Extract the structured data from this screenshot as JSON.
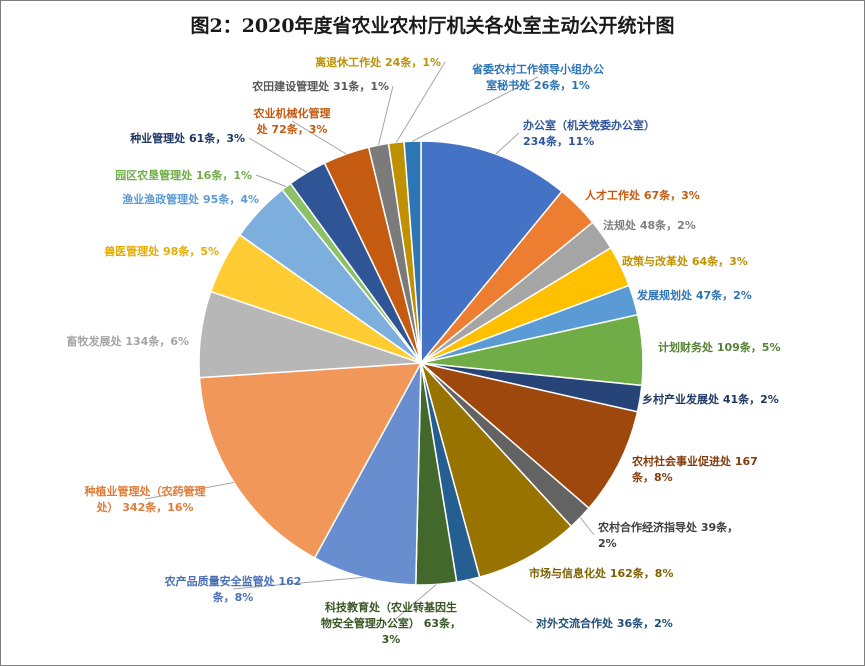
{
  "chart_data": {
    "type": "pie",
    "title": "图2：2020年度省农业农村厅机关各处室主动公开统计图",
    "unit": "条",
    "slices": [
      {
        "name": "办公室（机关党委办公室）",
        "value": 234,
        "percent": "11%",
        "color": "#4472c4"
      },
      {
        "name": "人才工作处",
        "value": 67,
        "percent": "3%",
        "color": "#ed7d31"
      },
      {
        "name": "法规处",
        "value": 48,
        "percent": "2%",
        "color": "#a5a5a5"
      },
      {
        "name": "政策与改革处",
        "value": 64,
        "percent": "3%",
        "color": "#ffc000"
      },
      {
        "name": "发展规划处",
        "value": 47,
        "percent": "2%",
        "color": "#5b9bd5"
      },
      {
        "name": "计划财务处",
        "value": 109,
        "percent": "5%",
        "color": "#70ad47"
      },
      {
        "name": "乡村产业发展处",
        "value": 41,
        "percent": "2%",
        "color": "#264478"
      },
      {
        "name": "农村社会事业促进处",
        "value": 167,
        "percent": "8%",
        "color": "#9e480e"
      },
      {
        "name": "农村合作经济指导处",
        "value": 39,
        "percent": "2%",
        "color": "#636363"
      },
      {
        "name": "市场与信息化处",
        "value": 162,
        "percent": "8%",
        "color": "#997300"
      },
      {
        "name": "对外交流合作处",
        "value": 36,
        "percent": "2%",
        "color": "#255e91"
      },
      {
        "name": "科技教育处（农业转基因生物安全管理办公室）",
        "value": 63,
        "percent": "3%",
        "color": "#43682b"
      },
      {
        "name": "农产品质量安全监管处",
        "value": 162,
        "percent": "8%",
        "color": "#698ed0"
      },
      {
        "name": "种植业管理处（农药管理处）",
        "value": 342,
        "percent": "16%",
        "color": "#f1975a"
      },
      {
        "name": "畜牧发展处",
        "value": 134,
        "percent": "6%",
        "color": "#b7b7b7"
      },
      {
        "name": "兽医管理处",
        "value": 98,
        "percent": "5%",
        "color": "#ffcd33"
      },
      {
        "name": "渔业渔政管理处",
        "value": 95,
        "percent": "4%",
        "color": "#7cafdd"
      },
      {
        "name": "园区农垦管理处",
        "value": 16,
        "percent": "1%",
        "color": "#8cc168"
      },
      {
        "name": "种业管理处",
        "value": 61,
        "percent": "3%",
        "color": "#2f5597"
      },
      {
        "name": "农业机械化管理处",
        "value": 72,
        "percent": "3%",
        "color": "#c55a11"
      },
      {
        "name": "农田建设管理处",
        "value": 31,
        "percent": "1%",
        "color": "#7b7b7b"
      },
      {
        "name": "离退休工作处",
        "value": 24,
        "percent": "1%",
        "color": "#bf9000"
      },
      {
        "name": "省委农村工作领导小组办公室秘书处",
        "value": 26,
        "percent": "1%",
        "color": "#2e75b6"
      }
    ],
    "label_colors": {
      "办公室（机关党委办公室）": "#2f5597",
      "人才工作处": "#c55a11",
      "法规处": "#7f7f7f",
      "政策与改革处": "#bf9000",
      "发展规划处": "#2e75b6",
      "计划财务处": "#548235",
      "乡村产业发展处": "#203864",
      "农村社会事业促进处": "#843c0c",
      "农村合作经济指导处": "#404040",
      "市场与信息化处": "#7f6000",
      "对外交流合作处": "#1f4e79",
      "科技教育处（农业转基因生物安全管理办公室）": "#375623",
      "农产品质量安全监管处": "#4a6fb5",
      "种植业管理处（农药管理处）": "#e07b39",
      "畜牧发展处": "#a5a5a5",
      "兽医管理处": "#e6ac00",
      "渔业渔政管理处": "#5b9bd5",
      "园区农垦管理处": "#70ad47",
      "种业管理处": "#203864",
      "农业机械化管理处": "#c55a11",
      "农田建设管理处": "#595959",
      "离退休工作处": "#bf9000",
      "省委农村工作领导小组办公室秘书处": "#2e75b6"
    },
    "label_lines": {
      "办公室（机关党委办公室）": [
        "办公室（机关党委办公室）",
        "234条，11%"
      ],
      "人才工作处": [
        "人才工作处 67条，3%"
      ],
      "法规处": [
        "法规处 48条，2%"
      ],
      "政策与改革处": [
        "政策与改革处 64条，3%"
      ],
      "发展规划处": [
        "发展规划处 47条，2%"
      ],
      "计划财务处": [
        "计划财务处 109条，5%"
      ],
      "乡村产业发展处": [
        "乡村产业发展处 41条，2%"
      ],
      "农村社会事业促进处": [
        "农村社会事业促进处 167",
        "条，8%"
      ],
      "农村合作经济指导处": [
        "农村合作经济指导处 39条，",
        "2%"
      ],
      "市场与信息化处": [
        "市场与信息化处 162条，8%"
      ],
      "对外交流合作处": [
        "对外交流合作处 36条，2%"
      ],
      "科技教育处（农业转基因生物安全管理办公室）": [
        "科技教育处（农业转基因生",
        "物安全管理办公室） 63条，",
        "3%"
      ],
      "农产品质量安全监管处": [
        "农产品质量安全监管处 162",
        "条，8%"
      ],
      "种植业管理处（农药管理处）": [
        "种植业管理处（农药管理",
        "处） 342条，16%"
      ],
      "畜牧发展处": [
        "畜牧发展处 134条，6%"
      ],
      "兽医管理处": [
        "兽医管理处 98条，5%"
      ],
      "渔业渔政管理处": [
        "渔业渔政管理处 95条，4%"
      ],
      "园区农垦管理处": [
        "园区农垦管理处 16条，1%"
      ],
      "种业管理处": [
        "种业管理处 61条，3%"
      ],
      "农业机械化管理处": [
        "农业机械化管理",
        "处 72条，3%"
      ],
      "农田建设管理处": [
        "农田建设管理处 31条，1%"
      ],
      "离退休工作处": [
        "离退休工作处 24条，1%"
      ],
      "省委农村工作领导小组办公室秘书处": [
        "省委农村工作领导小组办公",
        "室秘书处 26条，1%"
      ]
    },
    "legend": "none"
  }
}
